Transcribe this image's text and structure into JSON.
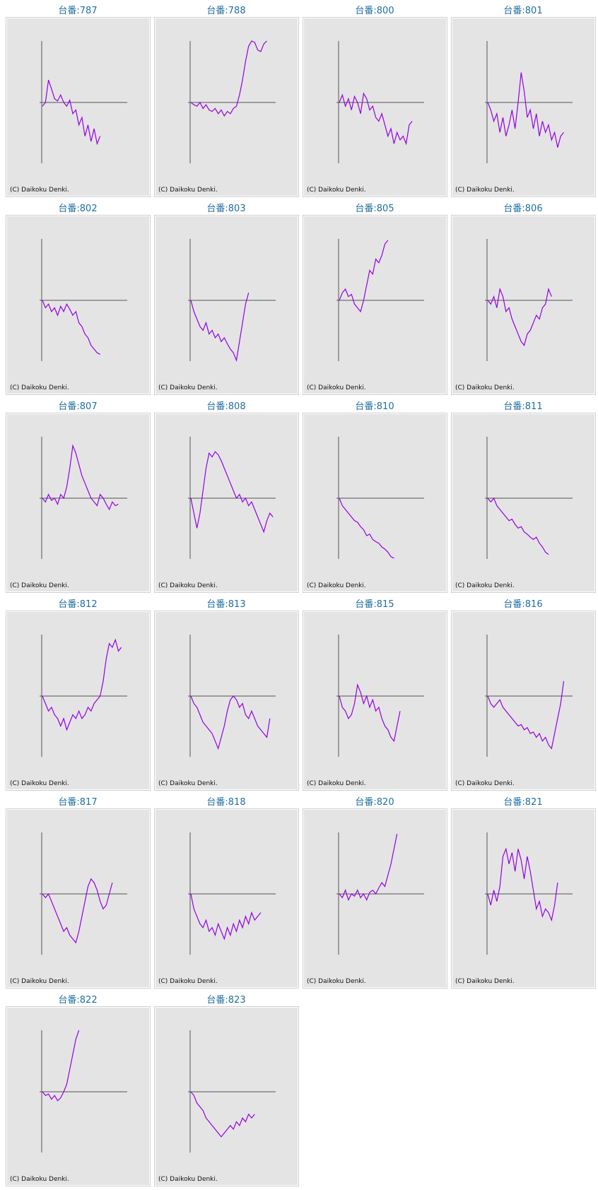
{
  "title_prefix": "台番:",
  "copyright": "(C) Daikoku Denki.",
  "colors": {
    "line": "#9400e6",
    "axis": "#555555",
    "title": "#1f6ea0",
    "background": "#e4e4e4"
  },
  "chart_data": {
    "type": "line",
    "xlabel": "",
    "ylabel": "",
    "ylim": [
      -80,
      82
    ],
    "x_step": 1,
    "grid": false,
    "charts": [
      {
        "title": "787",
        "values": [
          -5,
          0,
          30,
          18,
          5,
          2,
          10,
          0,
          -5,
          3,
          -15,
          -10,
          -30,
          -20,
          -45,
          -30,
          -52,
          -35,
          -55,
          -45
        ]
      },
      {
        "title": "788",
        "values": [
          0,
          -3,
          -5,
          0,
          -8,
          -3,
          -10,
          -12,
          -8,
          -15,
          -10,
          -18,
          -12,
          -15,
          -8,
          -5,
          10,
          30,
          55,
          75,
          82,
          80,
          70,
          68,
          78,
          82
        ]
      },
      {
        "title": "800",
        "values": [
          0,
          10,
          -5,
          5,
          -10,
          8,
          0,
          -15,
          12,
          5,
          -10,
          -5,
          -20,
          -25,
          -15,
          -30,
          -45,
          -35,
          -55,
          -40,
          -50,
          -45,
          -55,
          -30,
          -25
        ]
      },
      {
        "title": "801",
        "values": [
          0,
          -10,
          -25,
          -15,
          -40,
          -20,
          -45,
          -30,
          -10,
          -35,
          0,
          40,
          15,
          -20,
          -10,
          -35,
          -15,
          -45,
          -25,
          -40,
          -30,
          -50,
          -40,
          -60,
          -45,
          -40
        ]
      },
      {
        "title": "802",
        "values": [
          0,
          -10,
          -5,
          -15,
          -10,
          -20,
          -8,
          -15,
          -5,
          -12,
          -20,
          -15,
          -30,
          -35,
          -45,
          -50,
          -60,
          -65,
          -70,
          -72
        ]
      },
      {
        "title": "803",
        "values": [
          0,
          -15,
          -25,
          -35,
          -40,
          -30,
          -45,
          -40,
          -50,
          -45,
          -55,
          -50,
          -58,
          -65,
          -70,
          -80,
          -55,
          -30,
          -5,
          10
        ]
      },
      {
        "title": "805",
        "values": [
          0,
          10,
          15,
          5,
          8,
          -5,
          -10,
          -15,
          0,
          20,
          40,
          35,
          55,
          50,
          60,
          75,
          80
        ]
      },
      {
        "title": "806",
        "values": [
          0,
          -5,
          5,
          -10,
          15,
          5,
          -15,
          -10,
          -25,
          -35,
          -45,
          -55,
          -60,
          -45,
          -40,
          -30,
          -20,
          -25,
          -10,
          -5,
          15,
          5
        ]
      },
      {
        "title": "807",
        "values": [
          0,
          -5,
          5,
          -3,
          0,
          -8,
          5,
          0,
          15,
          40,
          70,
          60,
          45,
          30,
          20,
          10,
          0,
          -5,
          -10,
          5,
          0,
          -8,
          -15,
          -5,
          -10,
          -8
        ]
      },
      {
        "title": "808",
        "values": [
          0,
          -20,
          -40,
          -20,
          10,
          40,
          60,
          55,
          62,
          58,
          50,
          40,
          30,
          20,
          10,
          0,
          5,
          -5,
          0,
          -10,
          -5,
          -15,
          -25,
          -35,
          -45,
          -30,
          -20,
          -25
        ]
      },
      {
        "title": "810",
        "values": [
          0,
          -10,
          -15,
          -20,
          -25,
          -30,
          -32,
          -38,
          -42,
          -50,
          -48,
          -55,
          -58,
          -60,
          -65,
          -68,
          -72,
          -78,
          -80
        ]
      },
      {
        "title": "811",
        "values": [
          0,
          -5,
          0,
          -10,
          -15,
          -20,
          -25,
          -30,
          -28,
          -35,
          -40,
          -38,
          -45,
          -48,
          -52,
          -55,
          -52,
          -60,
          -65,
          -72,
          -75
        ]
      },
      {
        "title": "812",
        "values": [
          0,
          -10,
          -20,
          -15,
          -25,
          -30,
          -40,
          -30,
          -45,
          -35,
          -25,
          -30,
          -20,
          -30,
          -25,
          -15,
          -20,
          -10,
          -5,
          0,
          20,
          50,
          70,
          65,
          75,
          60,
          65
        ]
      },
      {
        "title": "813",
        "values": [
          0,
          -10,
          -15,
          -25,
          -35,
          -40,
          -45,
          -50,
          -60,
          -70,
          -55,
          -40,
          -20,
          -5,
          0,
          -5,
          -15,
          -10,
          -25,
          -30,
          -20,
          -30,
          -40,
          -45,
          -50,
          -55,
          -30
        ]
      },
      {
        "title": "815",
        "values": [
          0,
          -15,
          -20,
          -30,
          -25,
          -10,
          15,
          5,
          -10,
          0,
          -15,
          -5,
          -20,
          -15,
          -30,
          -40,
          -45,
          -55,
          -60,
          -40,
          -20
        ]
      },
      {
        "title": "816",
        "values": [
          0,
          -10,
          -15,
          -10,
          -5,
          -15,
          -20,
          -25,
          -30,
          -35,
          -40,
          -38,
          -45,
          -42,
          -50,
          -48,
          -55,
          -50,
          -60,
          -55,
          -65,
          -70,
          -50,
          -30,
          -10,
          20
        ]
      },
      {
        "title": "817",
        "values": [
          0,
          -5,
          0,
          -10,
          -20,
          -30,
          -40,
          -50,
          -45,
          -55,
          -60,
          -65,
          -50,
          -30,
          -10,
          10,
          20,
          15,
          5,
          -10,
          -20,
          -15,
          0,
          15
        ]
      },
      {
        "title": "818",
        "values": [
          0,
          -20,
          -30,
          -40,
          -45,
          -35,
          -50,
          -45,
          -55,
          -40,
          -50,
          -60,
          -45,
          -55,
          -40,
          -50,
          -35,
          -45,
          -30,
          -40,
          -25,
          -35,
          -30,
          -25
        ]
      },
      {
        "title": "820",
        "values": [
          0,
          -5,
          5,
          -8,
          0,
          -3,
          5,
          -5,
          0,
          -8,
          2,
          5,
          0,
          8,
          15,
          10,
          25,
          40,
          60,
          80
        ]
      },
      {
        "title": "821",
        "values": [
          0,
          -15,
          5,
          -10,
          10,
          50,
          60,
          40,
          55,
          30,
          60,
          45,
          20,
          50,
          30,
          5,
          -20,
          -10,
          -30,
          -20,
          -25,
          -35,
          -15,
          15
        ]
      },
      {
        "title": "822",
        "values": [
          0,
          -5,
          -3,
          -10,
          -5,
          -12,
          -8,
          0,
          10,
          30,
          50,
          70,
          82
        ]
      },
      {
        "title": "823",
        "values": [
          0,
          -5,
          -15,
          -20,
          -25,
          -35,
          -40,
          -45,
          -50,
          -55,
          -60,
          -55,
          -50,
          -45,
          -50,
          -40,
          -45,
          -35,
          -40,
          -30,
          -35,
          -30
        ]
      }
    ]
  }
}
